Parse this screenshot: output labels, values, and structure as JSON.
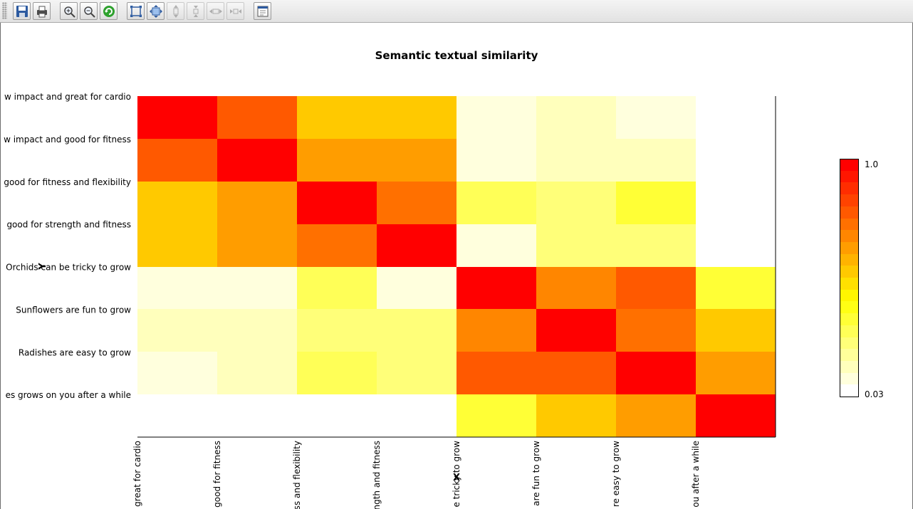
{
  "toolbar": {
    "buttons": [
      {
        "icon": "save-icon",
        "enabled": true
      },
      {
        "icon": "print-icon",
        "enabled": true
      },
      {
        "icon": "zoom-in-icon",
        "enabled": true
      },
      {
        "icon": "zoom-out-icon",
        "enabled": true
      },
      {
        "icon": "reset-zoom-icon",
        "enabled": true
      },
      {
        "icon": "fit-all-icon",
        "enabled": true
      },
      {
        "icon": "fit-selection-icon",
        "enabled": true
      },
      {
        "icon": "vertical-zoom-in-icon",
        "enabled": false
      },
      {
        "icon": "vertical-zoom-out-icon",
        "enabled": false
      },
      {
        "icon": "horizontal-zoom-in-icon",
        "enabled": false
      },
      {
        "icon": "horizontal-zoom-out-icon",
        "enabled": false
      },
      {
        "icon": "chart-properties-icon",
        "enabled": true
      }
    ]
  },
  "chart_data": {
    "type": "heatmap",
    "title": "Semantic textual similarity",
    "xlabel": "X",
    "ylabel": "Y",
    "categories": [
      "Cycling is low impact and great for cardio",
      "Swimming is low impact and good for fitness",
      "Yoga is good for fitness and flexibility",
      "Lifting is good for strength and fitness",
      "Orchids can be tricky to grow",
      "Sunflowers are fun to grow",
      "Radishes are easy to grow",
      "Dandelions grows on you after a while"
    ],
    "x_tick_labels": [
      "great for cardio",
      "good for fitness",
      "ss and flexibility",
      "ngth and fitness",
      "e tricky to grow",
      "are fun to grow",
      "re easy to grow",
      "ou after a while"
    ],
    "y_tick_labels": [
      "w impact and great for cardio",
      "w impact and good for fitness",
      "good for fitness and flexibility",
      "good for strength and fitness",
      "Orchids can be tricky to grow",
      "Sunflowers are fun to grow",
      "Radishes are easy to grow",
      "es grows on you after a while"
    ],
    "values": [
      [
        1.0,
        0.78,
        0.55,
        0.52,
        0.12,
        0.15,
        0.1,
        0.03
      ],
      [
        0.78,
        1.0,
        0.62,
        0.62,
        0.12,
        0.17,
        0.17,
        0.03
      ],
      [
        0.55,
        0.62,
        1.0,
        0.72,
        0.3,
        0.25,
        0.33,
        0.03
      ],
      [
        0.52,
        0.62,
        0.72,
        1.0,
        0.12,
        0.25,
        0.25,
        0.03
      ],
      [
        0.12,
        0.12,
        0.3,
        0.12,
        1.0,
        0.7,
        0.78,
        0.35
      ],
      [
        0.15,
        0.15,
        0.25,
        0.25,
        0.7,
        1.0,
        0.75,
        0.52
      ],
      [
        0.1,
        0.15,
        0.3,
        0.25,
        0.78,
        0.78,
        1.0,
        0.65
      ],
      [
        0.03,
        0.03,
        0.03,
        0.03,
        0.35,
        0.52,
        0.65,
        1.0
      ]
    ],
    "scale": {
      "min": 0.03,
      "max": 1.0,
      "min_label": "0.03",
      "max_label": "1.0",
      "steps": 20
    },
    "legend_position": "right",
    "grid": false,
    "colors": {
      "low": "#ffffff",
      "mid": "#ffff00",
      "high": "#ff0000"
    }
  }
}
